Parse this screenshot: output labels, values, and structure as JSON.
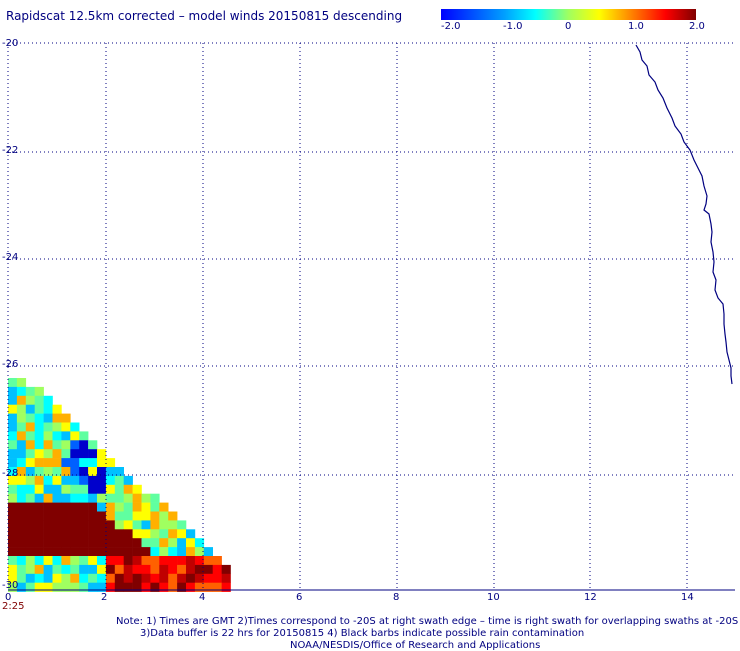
{
  "title": "Rapidscat 12.5km corrected – model winds 20150815 descending",
  "colorbar": {
    "labels": [
      "-2.0",
      "-1.0",
      "0",
      "1.0",
      "2.0"
    ],
    "min": -2.0,
    "max": 2.0
  },
  "axes": {
    "y_ticks": [
      "-20",
      "-22",
      "-24",
      "-26",
      "-28",
      "-30"
    ],
    "x_ticks": [
      "0",
      "2",
      "4",
      "6",
      "8",
      "10",
      "12",
      "14"
    ],
    "time_label": "2:25"
  },
  "notes": {
    "line1": "Note: 1) Times are GMT 2)Times correspond to -20S at right swath edge – time is right swath for overlapping swaths at -20S",
    "line2": "3)Data buffer is 22 hrs for 20150815 4) Black barbs indicate possible rain contamination",
    "line3": "NOAA/NESDIS/Office of Research and Applications"
  },
  "colors": {
    "text": "#000080",
    "grid": "#000080",
    "coastline": "#000080",
    "time_label": "#800000"
  }
}
